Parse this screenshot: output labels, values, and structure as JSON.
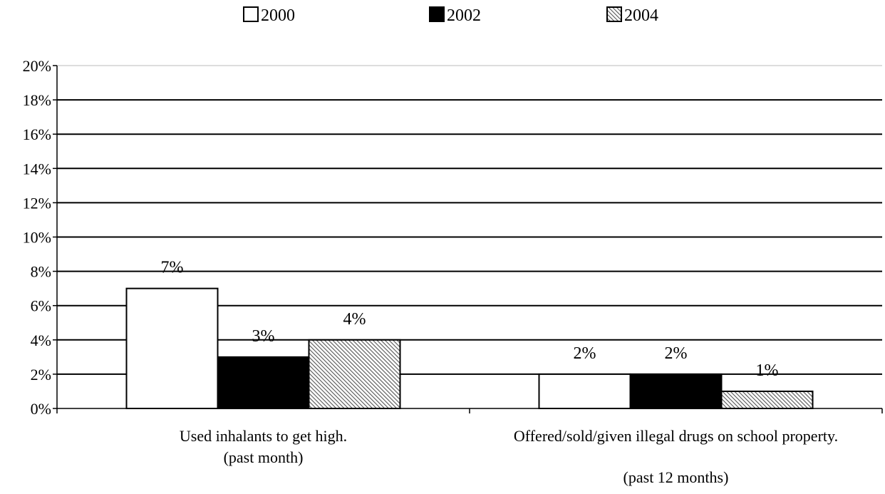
{
  "chart_data": {
    "type": "bar",
    "categories": [
      [
        "Used inhalants to get high.",
        "(past month)"
      ],
      [
        "Offered/sold/given illegal drugs on school property.",
        "(past 12 months)"
      ]
    ],
    "series": [
      {
        "name": "2000",
        "values": [
          7,
          2
        ],
        "labels": [
          "7%",
          "2%"
        ],
        "fill": "white"
      },
      {
        "name": "2002",
        "values": [
          3,
          2
        ],
        "labels": [
          "3%",
          "2%"
        ],
        "fill": "black"
      },
      {
        "name": "2004",
        "values": [
          4,
          1
        ],
        "labels": [
          "4%",
          "1%"
        ],
        "fill": "hatch"
      }
    ],
    "ylim": [
      0,
      20
    ],
    "yticks": [
      "0%",
      "2%",
      "4%",
      "6%",
      "8%",
      "10%",
      "12%",
      "14%",
      "16%",
      "18%",
      "20%"
    ],
    "grid": true,
    "legend_position": "top-center",
    "colors": {
      "white": "#ffffff",
      "black": "#000000",
      "hatch": "#9a9a9a",
      "axis": "#000000"
    }
  }
}
